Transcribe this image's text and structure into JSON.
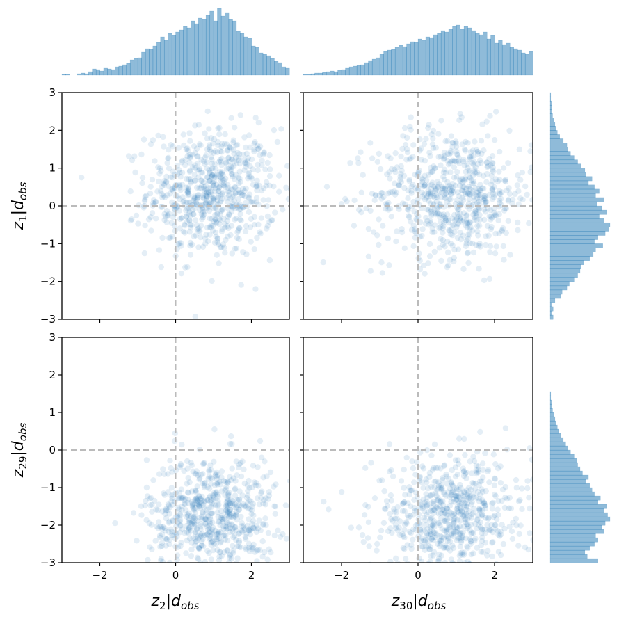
{
  "chart_data": {
    "type": "scatter",
    "subtype": "pair-plot with marginal histograms",
    "color": "#1f77b4",
    "point_alpha": 0.12,
    "reference_lines": {
      "x": 0,
      "y": 0,
      "style": "dashed",
      "color": "#bbbbbb"
    },
    "axes": {
      "x_range": [
        -3,
        3
      ],
      "y_range": [
        -3,
        3
      ],
      "ticks": [
        -2,
        0,
        2
      ],
      "ticks_top": [
        -3,
        -2,
        -1,
        0,
        1,
        2,
        3
      ],
      "tick_labels_x": [
        "−2",
        "0",
        "2"
      ],
      "tick_labels_y": [
        "3",
        "2",
        "1",
        "0",
        "−1",
        "−2",
        "−3"
      ]
    },
    "columns": [
      {
        "var": "z",
        "sub": "2",
        "cond": "|",
        "d": "d",
        "dsub": "obs"
      },
      {
        "var": "z",
        "sub": "30",
        "cond": "|",
        "d": "d",
        "dsub": "obs"
      }
    ],
    "rows": [
      {
        "var": "z",
        "sub": "1",
        "cond": "|",
        "d": "d",
        "dsub": "obs"
      },
      {
        "var": "z",
        "sub": "29",
        "cond": "|",
        "d": "d",
        "dsub": "obs"
      }
    ],
    "cloud_params": [
      [
        {
          "mx": 0.95,
          "sx": 0.85,
          "my": 0.35,
          "sy": 0.85
        },
        {
          "mx": 0.9,
          "sx": 1.05,
          "my": 0.3,
          "sy": 0.85
        }
      ],
      [
        {
          "mx": 0.95,
          "sx": 0.85,
          "my": -1.75,
          "sy": 0.8
        },
        {
          "mx": 0.9,
          "sx": 1.05,
          "my": -1.75,
          "sy": 0.8
        }
      ]
    ],
    "n_points_per_panel": 700,
    "marginal_hist": {
      "top_x_range": [
        -3,
        3
      ],
      "top_bins": 60,
      "top_col0": [
        0.01,
        0.01,
        0.0,
        0.0,
        0.02,
        0.03,
        0.02,
        0.05,
        0.09,
        0.08,
        0.06,
        0.1,
        0.09,
        0.08,
        0.12,
        0.13,
        0.15,
        0.17,
        0.22,
        0.24,
        0.25,
        0.33,
        0.38,
        0.37,
        0.42,
        0.47,
        0.55,
        0.5,
        0.6,
        0.57,
        0.62,
        0.65,
        0.7,
        0.68,
        0.78,
        0.74,
        0.82,
        0.8,
        0.86,
        0.92,
        0.78,
        0.96,
        0.85,
        0.9,
        0.8,
        0.78,
        0.63,
        0.6,
        0.55,
        0.53,
        0.42,
        0.4,
        0.32,
        0.3,
        0.28,
        0.24,
        0.2,
        0.18,
        0.12,
        0.1
      ],
      "top_col1": [
        0.01,
        0.01,
        0.02,
        0.03,
        0.03,
        0.04,
        0.05,
        0.06,
        0.05,
        0.07,
        0.08,
        0.1,
        0.12,
        0.13,
        0.14,
        0.15,
        0.18,
        0.21,
        0.23,
        0.25,
        0.3,
        0.34,
        0.36,
        0.37,
        0.4,
        0.43,
        0.41,
        0.45,
        0.48,
        0.47,
        0.52,
        0.5,
        0.55,
        0.54,
        0.58,
        0.6,
        0.64,
        0.62,
        0.66,
        0.7,
        0.72,
        0.66,
        0.7,
        0.68,
        0.64,
        0.6,
        0.58,
        0.62,
        0.52,
        0.57,
        0.46,
        0.5,
        0.44,
        0.46,
        0.4,
        0.38,
        0.36,
        0.32,
        0.3,
        0.34
      ],
      "right_y_range": [
        -3,
        3
      ],
      "right_bins": 54,
      "right_row0": [
        0.05,
        0.02,
        0.05,
        0.02,
        0.08,
        0.18,
        0.2,
        0.28,
        0.32,
        0.4,
        0.46,
        0.5,
        0.52,
        0.56,
        0.66,
        0.72,
        0.76,
        0.88,
        0.74,
        0.8,
        0.92,
        0.98,
        1.0,
        0.9,
        0.82,
        0.94,
        0.86,
        0.78,
        0.9,
        0.76,
        0.82,
        0.74,
        0.64,
        0.7,
        0.6,
        0.58,
        0.52,
        0.46,
        0.4,
        0.34,
        0.3,
        0.28,
        0.22,
        0.16,
        0.12,
        0.1,
        0.08,
        0.06,
        0.04,
        0.02,
        0.03,
        0.02,
        0.01,
        0.01
      ],
      "right_row1": [
        0.8,
        0.62,
        0.58,
        0.66,
        0.74,
        0.8,
        0.76,
        0.9,
        0.86,
        0.92,
        1.0,
        0.96,
        0.9,
        0.94,
        0.8,
        0.84,
        0.74,
        0.7,
        0.66,
        0.6,
        0.64,
        0.54,
        0.5,
        0.46,
        0.44,
        0.4,
        0.34,
        0.3,
        0.26,
        0.22,
        0.18,
        0.14,
        0.12,
        0.1,
        0.08,
        0.06,
        0.04,
        0.03,
        0.02,
        0.01,
        0.01,
        0.0,
        0.0,
        0.0,
        0.0,
        0.0,
        0.0,
        0.0,
        0.0,
        0.0,
        0.0,
        0.0,
        0.0,
        0.0
      ]
    }
  }
}
